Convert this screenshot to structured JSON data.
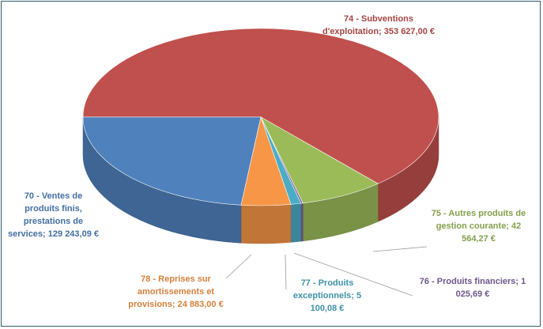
{
  "chart_data": {
    "type": "pie",
    "categories": [
      "74 - Subventions d'exploitation;",
      "75 - Autres produits de gestion courante;",
      "76 - Produits financiers;",
      "77 - Produits exceptionnels;",
      "78 - Reprises sur amortissements et provisions;",
      "70 - Ventes de produits finis, prestations de services;"
    ],
    "values": [
      353627.0,
      42564.27,
      1025.69,
      5100.08,
      24883.0,
      129243.09
    ],
    "value_labels": [
      "353 627,00 €",
      "42 564,27 €",
      "1 025,69 €",
      "5 100,08 €",
      "24 883,00 €",
      "129 243,09 €"
    ],
    "colors": [
      "#c0504d",
      "#9bbb59",
      "#8064a2",
      "#4bacc6",
      "#f79646",
      "#4f81bd"
    ]
  }
}
